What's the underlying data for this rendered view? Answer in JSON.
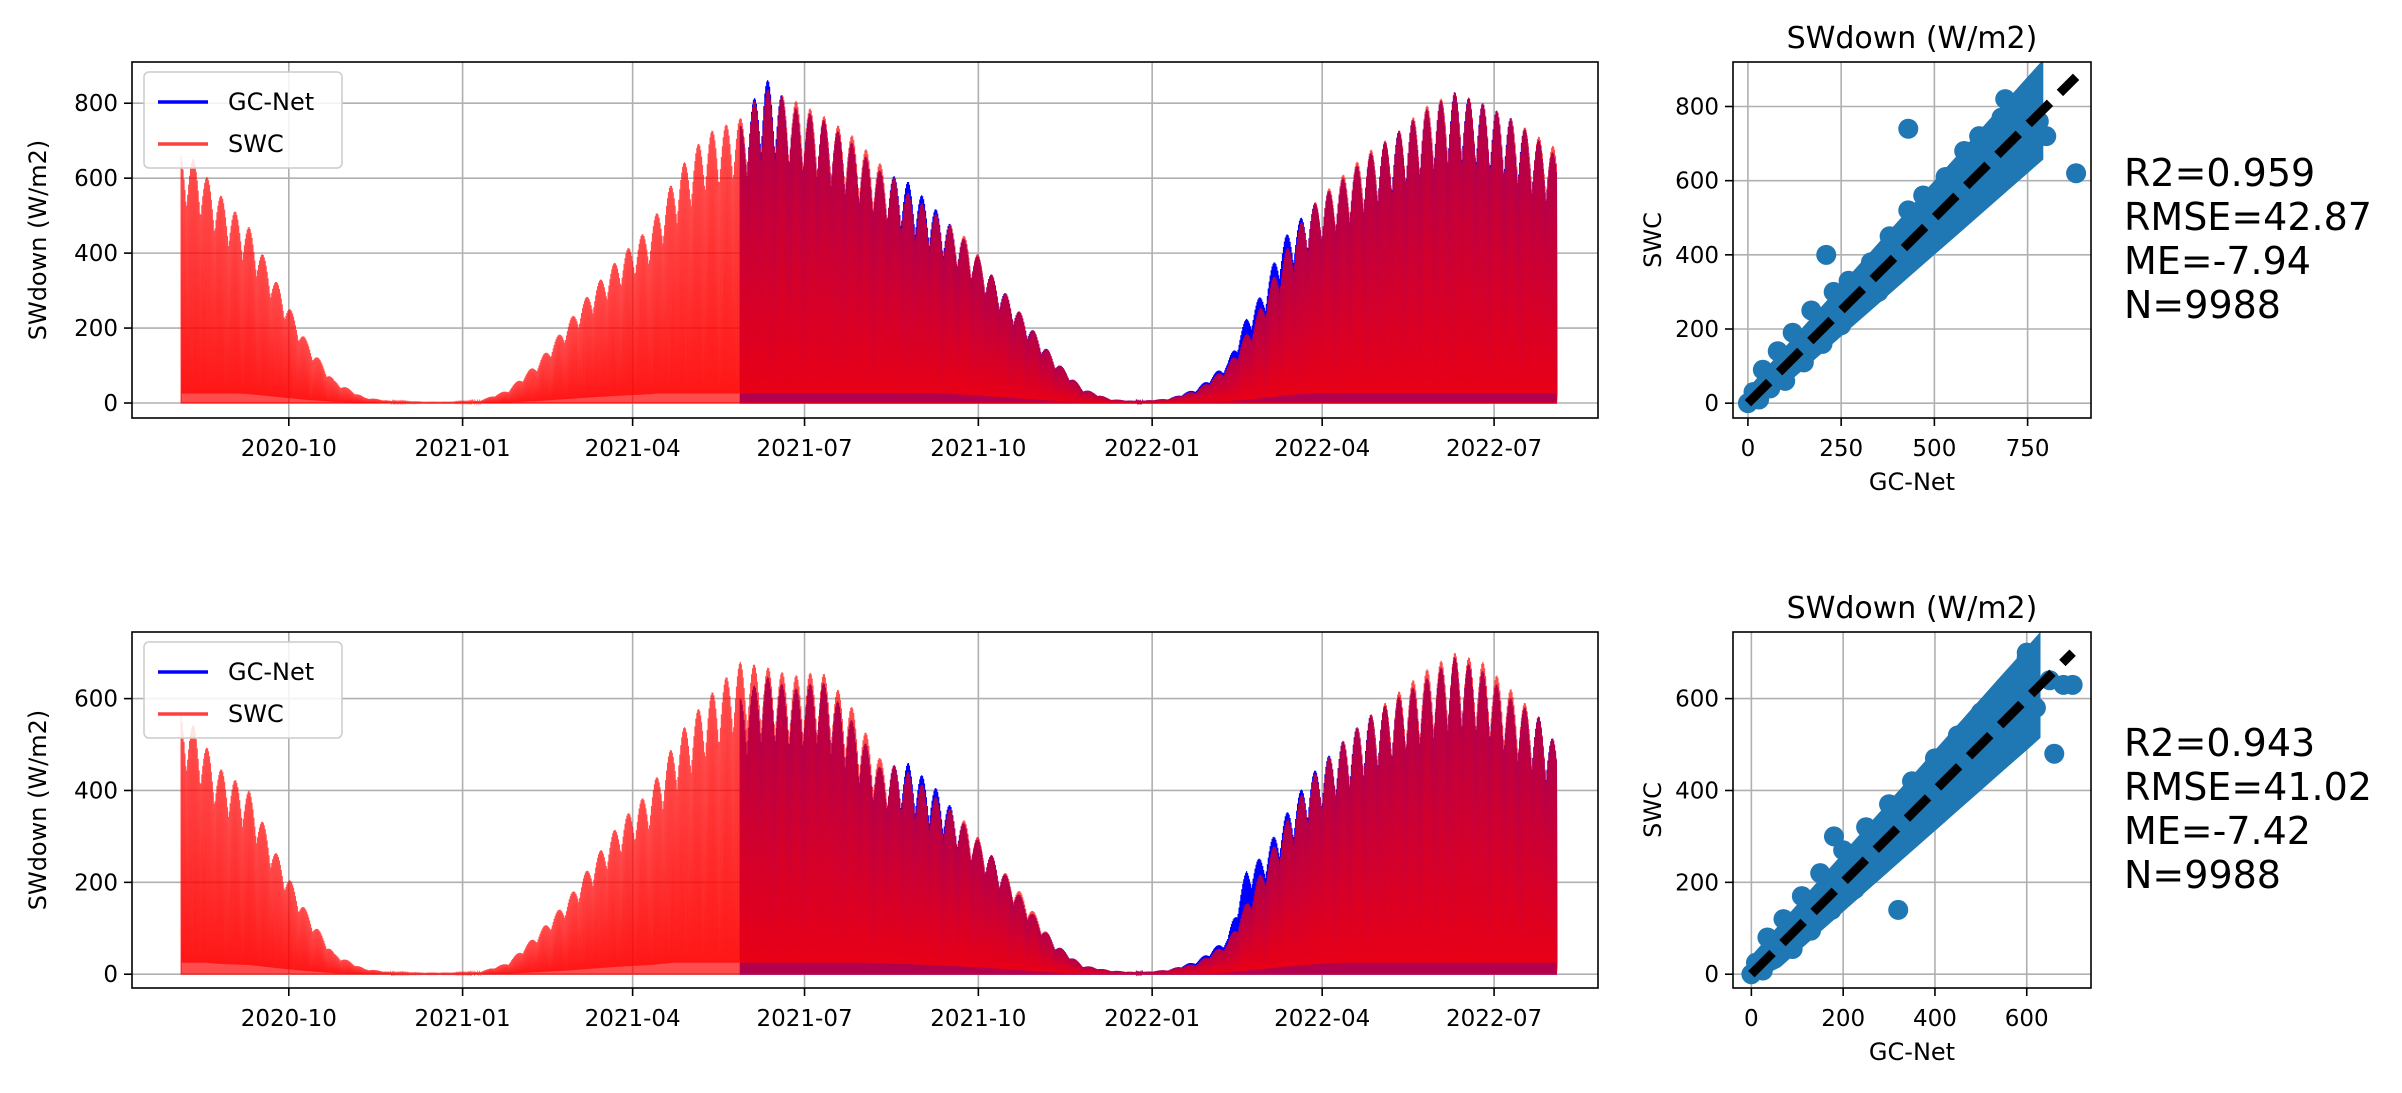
{
  "chart_data": [
    {
      "type": "area",
      "ylabel": "SWdown (W/m2)",
      "xlabel": "",
      "xlim": [
        "2020-07-10",
        "2022-08-25"
      ],
      "ylim": [
        -40,
        910
      ],
      "x_ticks": [
        "2020-10",
        "2021-01",
        "2021-04",
        "2021-07",
        "2021-10",
        "2022-01",
        "2022-04",
        "2022-07"
      ],
      "y_ticks": [
        0,
        200,
        400,
        600,
        800
      ],
      "grid": true,
      "legend": {
        "position": "top-left",
        "entries": [
          "GC-Net",
          "SWC"
        ]
      },
      "series": [
        {
          "name": "GC-Net",
          "color": "#0000ff",
          "x": [
            "2021-05-28",
            "2021-06-10",
            "2021-06-25",
            "2021-07-10",
            "2021-07-25",
            "2021-08-10",
            "2021-08-25",
            "2021-09-10",
            "2021-09-25",
            "2021-10-10",
            "2021-10-25",
            "2021-11-10",
            "2021-11-25",
            "2021-12-10",
            "2021-12-25",
            "2022-01-10",
            "2022-01-25",
            "2022-02-10",
            "2022-02-20",
            "2022-03-01",
            "2022-03-10",
            "2022-03-25",
            "2022-04-10",
            "2022-04-25",
            "2022-05-10",
            "2022-05-25",
            "2022-06-10",
            "2022-06-25",
            "2022-07-10",
            "2022-07-25",
            "2022-08-03"
          ],
          "values": [
            740,
            870,
            790,
            760,
            700,
            620,
            590,
            510,
            430,
            330,
            230,
            120,
            40,
            10,
            5,
            12,
            40,
            110,
            230,
            300,
            430,
            520,
            590,
            660,
            720,
            780,
            830,
            800,
            760,
            700,
            660
          ]
        },
        {
          "name": "SWC",
          "color": "#ff0000",
          "x": [
            "2020-08-05",
            "2020-08-12",
            "2020-08-25",
            "2020-09-10",
            "2020-09-25",
            "2020-10-10",
            "2020-10-25",
            "2020-11-10",
            "2020-11-25",
            "2020-12-10",
            "2020-12-25",
            "2021-01-10",
            "2021-01-25",
            "2021-02-10",
            "2021-02-25",
            "2021-03-10",
            "2021-03-25",
            "2021-04-10",
            "2021-04-25",
            "2021-05-10",
            "2021-05-28",
            "2021-06-10",
            "2021-06-25",
            "2021-07-10",
            "2021-07-25",
            "2021-08-10",
            "2021-08-25",
            "2021-09-10",
            "2021-09-25",
            "2021-10-10",
            "2021-10-25",
            "2021-11-10",
            "2021-11-25",
            "2021-12-10",
            "2021-12-25",
            "2022-01-10",
            "2022-01-25",
            "2022-02-10",
            "2022-02-25",
            "2022-03-10",
            "2022-03-25",
            "2022-04-10",
            "2022-04-25",
            "2022-05-10",
            "2022-05-25",
            "2022-06-10",
            "2022-06-25",
            "2022-07-10",
            "2022-07-25",
            "2022-08-03"
          ],
          "values": [
            670,
            650,
            560,
            470,
            320,
            170,
            60,
            15,
            5,
            2,
            2,
            6,
            35,
            110,
            210,
            300,
            390,
            470,
            620,
            720,
            760,
            840,
            810,
            770,
            720,
            640,
            560,
            500,
            440,
            330,
            230,
            120,
            40,
            10,
            5,
            12,
            35,
            100,
            230,
            380,
            520,
            600,
            670,
            720,
            790,
            830,
            800,
            760,
            710,
            680
          ]
        }
      ]
    },
    {
      "type": "scatter",
      "title": "SWdown (W/m2)",
      "xlabel": "GC-Net",
      "ylabel": "SWC",
      "xlim": [
        -40,
        920
      ],
      "ylim": [
        -40,
        920
      ],
      "x_ticks": [
        0,
        250,
        500,
        750
      ],
      "y_ticks": [
        0,
        200,
        400,
        600,
        800
      ],
      "grid": true,
      "point_color": "#1f77b4",
      "line_color": "#000000",
      "one_to_one_line": [
        [
          0,
          0
        ],
        [
          880,
          880
        ]
      ],
      "points": [
        [
          0,
          0
        ],
        [
          15,
          30
        ],
        [
          30,
          10
        ],
        [
          40,
          90
        ],
        [
          60,
          40
        ],
        [
          80,
          140
        ],
        [
          100,
          60
        ],
        [
          120,
          190
        ],
        [
          150,
          110
        ],
        [
          170,
          250
        ],
        [
          200,
          160
        ],
        [
          230,
          300
        ],
        [
          250,
          210
        ],
        [
          270,
          330
        ],
        [
          300,
          270
        ],
        [
          330,
          380
        ],
        [
          350,
          300
        ],
        [
          380,
          450
        ],
        [
          400,
          360
        ],
        [
          430,
          520
        ],
        [
          450,
          420
        ],
        [
          470,
          560
        ],
        [
          500,
          460
        ],
        [
          530,
          610
        ],
        [
          550,
          520
        ],
        [
          580,
          680
        ],
        [
          600,
          560
        ],
        [
          620,
          720
        ],
        [
          650,
          610
        ],
        [
          680,
          770
        ],
        [
          700,
          650
        ],
        [
          730,
          790
        ],
        [
          750,
          700
        ],
        [
          780,
          760
        ],
        [
          800,
          720
        ],
        [
          880,
          620
        ],
        [
          430,
          740
        ],
        [
          560,
          510
        ],
        [
          690,
          820
        ],
        [
          210,
          400
        ]
      ]
    },
    {
      "type": "area",
      "ylabel": "SWdown (W/m2)",
      "xlabel": "",
      "xlim": [
        "2020-07-10",
        "2022-08-25"
      ],
      "ylim": [
        -30,
        745
      ],
      "x_ticks": [
        "2020-10",
        "2021-01",
        "2021-04",
        "2021-07",
        "2021-10",
        "2022-01",
        "2022-04",
        "2022-07"
      ],
      "y_ticks": [
        0,
        200,
        400,
        600
      ],
      "grid": true,
      "legend": {
        "position": "top-left",
        "entries": [
          "GC-Net",
          "SWC"
        ]
      },
      "series": [
        {
          "name": "GC-Net",
          "color": "#0000ff",
          "x": [
            "2021-05-28",
            "2021-06-10",
            "2021-06-25",
            "2021-07-10",
            "2021-07-25",
            "2021-08-10",
            "2021-08-25",
            "2021-09-10",
            "2021-09-25",
            "2021-10-10",
            "2021-10-25",
            "2021-11-10",
            "2021-11-25",
            "2021-12-10",
            "2021-12-25",
            "2022-01-10",
            "2022-01-25",
            "2022-02-10",
            "2022-02-20",
            "2022-03-01",
            "2022-03-10",
            "2022-03-25",
            "2022-04-10",
            "2022-04-25",
            "2022-05-10",
            "2022-05-25",
            "2022-06-10",
            "2022-06-25",
            "2022-07-10",
            "2022-07-25",
            "2022-08-03"
          ],
          "values": [
            600,
            650,
            620,
            640,
            560,
            450,
            460,
            400,
            320,
            250,
            160,
            70,
            20,
            8,
            4,
            10,
            30,
            80,
            230,
            260,
            330,
            430,
            500,
            560,
            600,
            640,
            690,
            660,
            600,
            560,
            500
          ]
        },
        {
          "name": "SWC",
          "color": "#ff0000",
          "x": [
            "2020-08-05",
            "2020-08-12",
            "2020-08-25",
            "2020-09-10",
            "2020-09-25",
            "2020-10-10",
            "2020-10-25",
            "2020-11-10",
            "2020-11-25",
            "2020-12-10",
            "2020-12-25",
            "2021-01-10",
            "2021-01-25",
            "2021-02-10",
            "2021-02-25",
            "2021-03-10",
            "2021-03-25",
            "2021-04-10",
            "2021-04-25",
            "2021-05-10",
            "2021-05-28",
            "2021-06-10",
            "2021-06-25",
            "2021-07-10",
            "2021-07-25",
            "2021-08-10",
            "2021-08-25",
            "2021-09-10",
            "2021-09-25",
            "2021-10-10",
            "2021-10-25",
            "2021-11-10",
            "2021-11-25",
            "2021-12-10",
            "2021-12-25",
            "2022-01-10",
            "2022-01-25",
            "2022-02-10",
            "2022-02-25",
            "2022-03-10",
            "2022-03-25",
            "2022-04-10",
            "2022-04-25",
            "2022-05-10",
            "2022-05-25",
            "2022-06-10",
            "2022-06-25",
            "2022-07-10",
            "2022-07-25",
            "2022-08-03"
          ],
          "values": [
            570,
            540,
            450,
            400,
            260,
            140,
            45,
            12,
            4,
            2,
            2,
            5,
            25,
            90,
            160,
            240,
            330,
            400,
            520,
            600,
            680,
            670,
            650,
            660,
            590,
            470,
            440,
            380,
            330,
            250,
            170,
            70,
            20,
            8,
            4,
            10,
            25,
            70,
            200,
            310,
            420,
            500,
            560,
            610,
            660,
            700,
            680,
            620,
            560,
            500
          ]
        }
      ]
    },
    {
      "type": "scatter",
      "title": "SWdown (W/m2)",
      "xlabel": "GC-Net",
      "ylabel": "SWC",
      "xlim": [
        -40,
        740
      ],
      "ylim": [
        -30,
        745
      ],
      "x_ticks": [
        0,
        200,
        400,
        600
      ],
      "y_ticks": [
        0,
        200,
        400,
        600
      ],
      "grid": true,
      "point_color": "#1f77b4",
      "line_color": "#000000",
      "one_to_one_line": [
        [
          0,
          0
        ],
        [
          700,
          700
        ]
      ],
      "points": [
        [
          0,
          0
        ],
        [
          10,
          25
        ],
        [
          25,
          8
        ],
        [
          35,
          80
        ],
        [
          50,
          35
        ],
        [
          70,
          120
        ],
        [
          90,
          55
        ],
        [
          110,
          170
        ],
        [
          130,
          95
        ],
        [
          150,
          220
        ],
        [
          175,
          140
        ],
        [
          200,
          270
        ],
        [
          225,
          185
        ],
        [
          250,
          320
        ],
        [
          270,
          230
        ],
        [
          300,
          370
        ],
        [
          320,
          280
        ],
        [
          350,
          420
        ],
        [
          370,
          330
        ],
        [
          400,
          470
        ],
        [
          420,
          380
        ],
        [
          450,
          520
        ],
        [
          470,
          430
        ],
        [
          500,
          570
        ],
        [
          520,
          480
        ],
        [
          550,
          620
        ],
        [
          570,
          530
        ],
        [
          600,
          690
        ],
        [
          620,
          580
        ],
        [
          650,
          640
        ],
        [
          680,
          630
        ],
        [
          700,
          630
        ],
        [
          600,
          700
        ],
        [
          320,
          140
        ],
        [
          520,
          560
        ],
        [
          180,
          300
        ],
        [
          420,
          470
        ],
        [
          660,
          480
        ]
      ]
    }
  ],
  "stats_panels": [
    {
      "lines": [
        "R2=0.959",
        "RMSE=42.87",
        "ME=-7.94",
        "N=9988"
      ]
    },
    {
      "lines": [
        "R2=0.943",
        "RMSE=41.02",
        "ME=-7.42",
        "N=9988"
      ]
    }
  ]
}
